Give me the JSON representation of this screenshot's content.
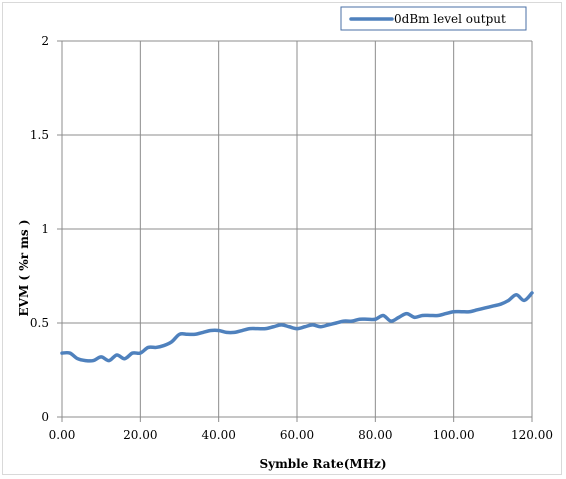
{
  "chart_data": {
    "type": "line",
    "title": "",
    "xlabel": "Symble Rate(MHz)",
    "ylabel": "EVM ( %r ms )",
    "xlim": [
      0,
      120
    ],
    "ylim": [
      0,
      2
    ],
    "x_ticks": [
      "0.00",
      "20.00",
      "40.00",
      "60.00",
      "80.00",
      "100.00",
      "120.00"
    ],
    "y_ticks": [
      "0",
      "0.5",
      "1",
      "1.5",
      "2"
    ],
    "grid": true,
    "legend_position": "top-right",
    "series": [
      {
        "name": "0dBm level output",
        "color": "#4f81bd",
        "x": [
          0,
          2,
          4,
          6,
          8,
          10,
          12,
          14,
          16,
          18,
          20,
          22,
          24,
          26,
          28,
          30,
          32,
          34,
          36,
          38,
          40,
          42,
          44,
          46,
          48,
          50,
          52,
          54,
          56,
          58,
          60,
          62,
          64,
          66,
          68,
          70,
          72,
          74,
          76,
          78,
          80,
          82,
          84,
          86,
          88,
          90,
          92,
          94,
          96,
          98,
          100,
          102,
          104,
          106,
          108,
          110,
          112,
          114,
          116,
          118,
          120
        ],
        "y": [
          0.34,
          0.34,
          0.31,
          0.3,
          0.3,
          0.32,
          0.3,
          0.33,
          0.31,
          0.34,
          0.34,
          0.37,
          0.37,
          0.38,
          0.4,
          0.44,
          0.44,
          0.44,
          0.45,
          0.46,
          0.46,
          0.45,
          0.45,
          0.46,
          0.47,
          0.47,
          0.47,
          0.48,
          0.49,
          0.48,
          0.47,
          0.48,
          0.49,
          0.48,
          0.49,
          0.5,
          0.51,
          0.51,
          0.52,
          0.52,
          0.52,
          0.54,
          0.51,
          0.53,
          0.55,
          0.53,
          0.54,
          0.54,
          0.54,
          0.55,
          0.56,
          0.56,
          0.56,
          0.57,
          0.58,
          0.59,
          0.6,
          0.62,
          0.65,
          0.62,
          0.66
        ]
      }
    ]
  }
}
